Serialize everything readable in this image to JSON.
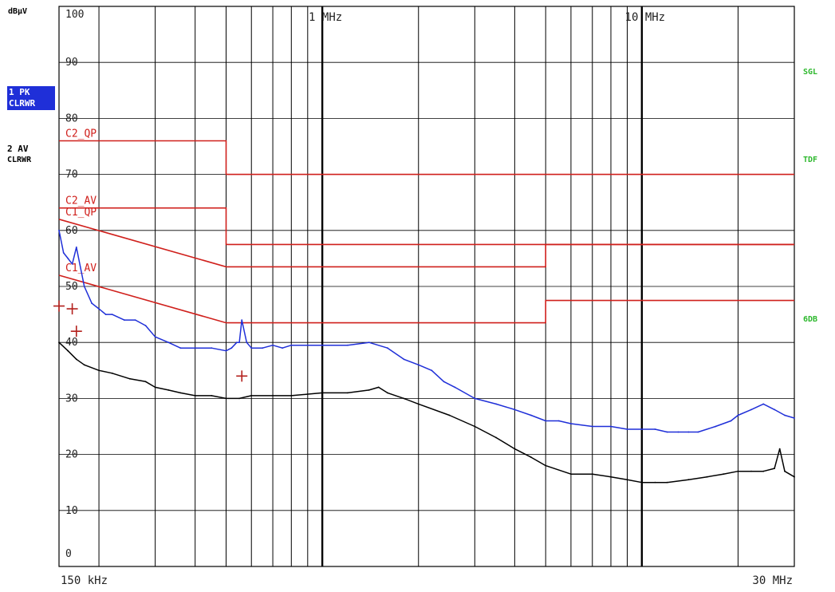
{
  "header": {
    "unit": "dBµV"
  },
  "traces": [
    {
      "label": "1 PK",
      "mode": "CLRWR",
      "color": "#1f2fd8",
      "highlighted": true
    },
    {
      "label": "2 AV",
      "mode": "CLRWR",
      "color": "#000000",
      "highlighted": false
    }
  ],
  "status": [
    "SGL",
    "TDF",
    "6DB"
  ],
  "colors": {
    "peak_trace": "#1f2fd8",
    "average_trace": "#000000",
    "limit": "#d0201c",
    "status_text": "#2db82d",
    "grid": "#000000"
  },
  "chart_data": {
    "type": "line",
    "x_scale": "log",
    "xlim": [
      0.15,
      30
    ],
    "ylim": [
      0,
      100
    ],
    "grid": true,
    "ylabel": "dBµV",
    "x_ticklabels_bottom": [
      {
        "x": 0.15,
        "text": "150 kHz"
      },
      {
        "x": 30,
        "text": "30 MHz"
      }
    ],
    "x_ticklabels_top": [
      {
        "x": 1,
        "text": "1 MHz"
      },
      {
        "x": 10,
        "text": "10 MHz"
      }
    ],
    "y_ticks": [
      0,
      10,
      20,
      30,
      40,
      50,
      60,
      70,
      80,
      90,
      100
    ],
    "limit_lines": [
      {
        "label": "C2_QP",
        "points": [
          [
            0.15,
            76
          ],
          [
            0.5,
            76
          ],
          [
            0.5,
            70
          ],
          [
            30,
            70
          ]
        ]
      },
      {
        "label": "C2_AV",
        "points": [
          [
            0.15,
            64
          ],
          [
            0.5,
            64
          ],
          [
            0.5,
            57.5
          ],
          [
            30,
            57.5
          ]
        ]
      },
      {
        "label": "C1_QP",
        "points": [
          [
            0.15,
            62
          ],
          [
            0.5,
            53.5
          ],
          [
            5,
            53.5
          ],
          [
            5,
            57.5
          ],
          [
            30,
            57.5
          ]
        ]
      },
      {
        "label": "C1_AV",
        "points": [
          [
            0.15,
            52
          ],
          [
            0.5,
            43.5
          ],
          [
            5,
            43.5
          ],
          [
            5,
            47.5
          ],
          [
            30,
            47.5
          ]
        ]
      }
    ],
    "series": [
      {
        "name": "1 PK",
        "x": [
          0.15,
          0.155,
          0.16,
          0.165,
          0.17,
          0.18,
          0.19,
          0.2,
          0.21,
          0.22,
          0.24,
          0.26,
          0.28,
          0.3,
          0.33,
          0.36,
          0.4,
          0.45,
          0.5,
          0.52,
          0.54,
          0.55,
          0.56,
          0.58,
          0.6,
          0.65,
          0.7,
          0.75,
          0.8,
          0.9,
          1,
          1.2,
          1.4,
          1.6,
          1.8,
          2,
          2.2,
          2.4,
          2.6,
          3,
          3.5,
          4,
          4.5,
          5,
          5.5,
          6,
          7,
          8,
          9,
          10,
          11,
          12,
          13,
          14,
          15,
          17,
          19,
          20,
          22,
          24,
          26,
          28,
          30
        ],
        "y": [
          60,
          56,
          55,
          54,
          57,
          50,
          47,
          46,
          45,
          45,
          44,
          44,
          43,
          41,
          40,
          39,
          39,
          39,
          38.5,
          39,
          40,
          40,
          44,
          40,
          39,
          39,
          39.5,
          39,
          39.5,
          39.5,
          39.5,
          39.5,
          40,
          39,
          37,
          36,
          35,
          33,
          32,
          30,
          29,
          28,
          27,
          26,
          26,
          25.5,
          25,
          25,
          24.5,
          24.5,
          24.5,
          24,
          24,
          24,
          24,
          25,
          26,
          27,
          28,
          29,
          28,
          27,
          26.5
        ]
      },
      {
        "name": "2 AV",
        "x": [
          0.15,
          0.16,
          0.17,
          0.18,
          0.2,
          0.22,
          0.25,
          0.28,
          0.3,
          0.33,
          0.36,
          0.4,
          0.45,
          0.5,
          0.55,
          0.6,
          0.7,
          0.8,
          1,
          1.2,
          1.4,
          1.5,
          1.6,
          1.8,
          2,
          2.5,
          3,
          3.5,
          4,
          4.5,
          5,
          6,
          7,
          8,
          9,
          10,
          11,
          12,
          14,
          16,
          18,
          20,
          22,
          24,
          26,
          27,
          28,
          30
        ],
        "y": [
          40,
          38.5,
          37,
          36,
          35,
          34.5,
          33.5,
          33,
          32,
          31.5,
          31,
          30.5,
          30.5,
          30,
          30,
          30.5,
          30.5,
          30.5,
          31,
          31,
          31.5,
          32,
          31,
          30,
          29,
          27,
          25,
          23,
          21,
          19.5,
          18,
          16.5,
          16.5,
          16,
          15.5,
          15,
          15,
          15,
          15.5,
          16,
          16.5,
          17,
          17,
          17,
          17.5,
          21,
          17,
          16
        ]
      }
    ],
    "markers": [
      {
        "x": 0.15,
        "y": 46.5
      },
      {
        "x": 0.165,
        "y": 46
      },
      {
        "x": 0.17,
        "y": 42
      },
      {
        "x": 0.56,
        "y": 34
      }
    ]
  }
}
